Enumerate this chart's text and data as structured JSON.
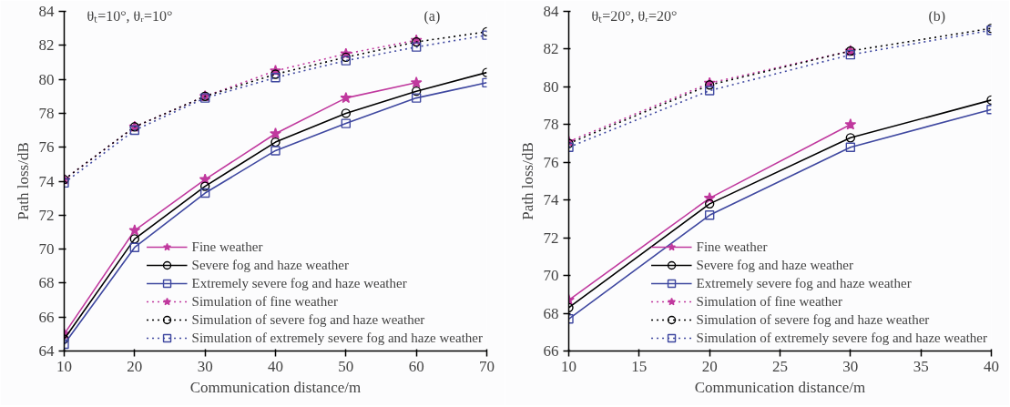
{
  "chart_data": [
    {
      "type": "line",
      "xlabel": "Communication distance/m",
      "ylabel": "Path loss/dB",
      "annotations": [
        "θₜ=10°, θᵣ=10°",
        "(a)"
      ],
      "xlim": [
        10,
        70
      ],
      "ylim": [
        64,
        84
      ],
      "xticks": [
        10,
        20,
        30,
        40,
        50,
        60,
        70
      ],
      "yticks": [
        64,
        66,
        68,
        70,
        72,
        74,
        76,
        78,
        80,
        82,
        84
      ],
      "grid": false,
      "legend": "bottom right",
      "series": [
        {
          "name": "Fine weather",
          "color": "#c0399e",
          "marker": "star",
          "line_style": "solid",
          "x": [
            10,
            20,
            30,
            40,
            50,
            60
          ],
          "values": [
            65.0,
            71.1,
            74.1,
            76.8,
            78.9,
            79.8
          ]
        },
        {
          "name": "Severe fog and haze weather",
          "color": "#000000",
          "marker": "circle",
          "line_style": "solid",
          "x": [
            10,
            20,
            30,
            40,
            50,
            60,
            70
          ],
          "values": [
            64.7,
            70.6,
            73.7,
            76.3,
            78.0,
            79.3,
            80.4
          ]
        },
        {
          "name": "Extremely severe fog and haze weather",
          "color": "#3f48a0",
          "marker": "square",
          "line_style": "solid",
          "x": [
            10,
            20,
            30,
            40,
            50,
            60,
            70
          ],
          "values": [
            64.4,
            70.1,
            73.3,
            75.8,
            77.4,
            78.9,
            79.8
          ]
        },
        {
          "name": "Simulation of fine weather",
          "color": "#c0399e",
          "marker": "star",
          "line_style": "dotted",
          "x": [
            10,
            20,
            30,
            40,
            50,
            60
          ],
          "values": [
            74.1,
            77.2,
            79.0,
            80.5,
            81.5,
            82.3
          ]
        },
        {
          "name": "Simulation of severe fog and haze weather",
          "color": "#000000",
          "marker": "circle",
          "line_style": "dotted",
          "x": [
            10,
            20,
            30,
            40,
            50,
            60,
            70
          ],
          "values": [
            74.1,
            77.2,
            79.0,
            80.3,
            81.3,
            82.2,
            82.8
          ]
        },
        {
          "name": "Simulation of extremely severe fog and haze weather",
          "color": "#3f48a0",
          "marker": "square",
          "line_style": "dotted",
          "x": [
            10,
            20,
            30,
            40,
            50,
            60,
            70
          ],
          "values": [
            73.9,
            77.0,
            78.9,
            80.1,
            81.1,
            81.9,
            82.6
          ]
        }
      ]
    },
    {
      "type": "line",
      "xlabel": "Communication distance/m",
      "ylabel": "Path loss/dB",
      "annotations": [
        "θₜ=20°, θᵣ=20°",
        "(b)"
      ],
      "xlim": [
        10,
        40
      ],
      "ylim": [
        66,
        84
      ],
      "xticks": [
        10,
        15,
        20,
        25,
        30,
        35,
        40
      ],
      "yticks": [
        66,
        68,
        70,
        72,
        74,
        76,
        78,
        80,
        82,
        84
      ],
      "grid": false,
      "legend": "bottom right",
      "series": [
        {
          "name": "Fine weather",
          "color": "#c0399e",
          "marker": "star",
          "line_style": "solid",
          "x": [
            10,
            20,
            30
          ],
          "values": [
            68.7,
            74.1,
            78.0
          ]
        },
        {
          "name": "Severe fog and haze weather",
          "color": "#000000",
          "marker": "circle",
          "line_style": "solid",
          "x": [
            10,
            20,
            30,
            40
          ],
          "values": [
            68.3,
            73.8,
            77.3,
            79.3
          ]
        },
        {
          "name": "Extremely severe fog and haze weather",
          "color": "#3f48a0",
          "marker": "square",
          "line_style": "solid",
          "x": [
            10,
            20,
            30,
            40
          ],
          "values": [
            67.7,
            73.2,
            76.8,
            78.8
          ]
        },
        {
          "name": "Simulation of fine weather",
          "color": "#c0399e",
          "marker": "star",
          "line_style": "dotted",
          "x": [
            10,
            20,
            30
          ],
          "values": [
            77.1,
            80.2,
            81.9
          ]
        },
        {
          "name": "Simulation of severe fog and haze weather",
          "color": "#000000",
          "marker": "circle",
          "line_style": "dotted",
          "x": [
            10,
            20,
            30,
            40
          ],
          "values": [
            77.0,
            80.1,
            81.9,
            83.1
          ]
        },
        {
          "name": "Simulation of extremely severe fog and haze weather",
          "color": "#3f48a0",
          "marker": "square",
          "line_style": "dotted",
          "x": [
            10,
            20,
            30,
            40
          ],
          "values": [
            76.8,
            79.8,
            81.7,
            83.0
          ]
        }
      ]
    }
  ]
}
